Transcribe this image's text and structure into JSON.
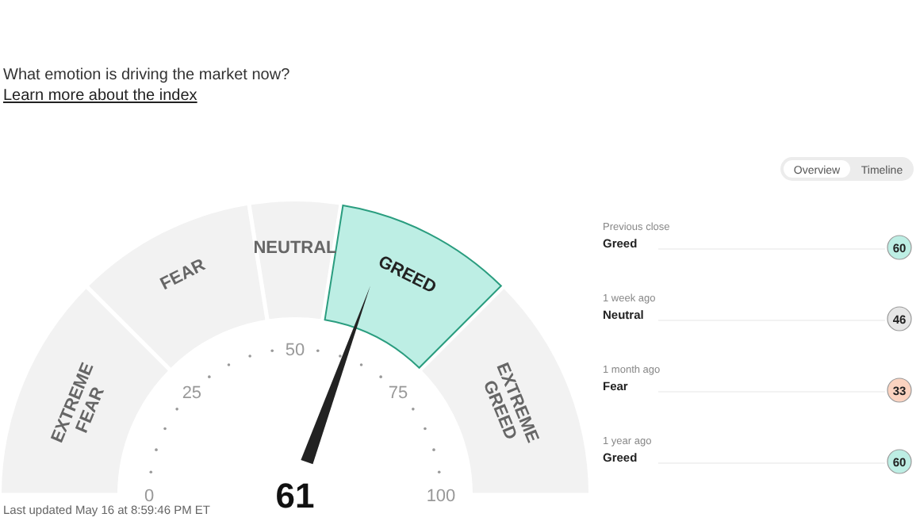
{
  "chart_data": [
    {
      "type": "donut",
      "subtitle": "What emotion is driving the market now?",
      "categories": [
        "EXTREME FEAR",
        "FEAR",
        "NEUTRAL",
        "GREED",
        "EXTREME GREED"
      ],
      "values": [
        25,
        20,
        10,
        20,
        25
      ],
      "colors": [
        "#f2f2f2",
        "#f2f2f2",
        "#f2f2f2",
        "#bdeee4",
        "#f2f2f2"
      ],
      "needle": "GREED",
      "annotations": [
        "61",
        "0",
        "25",
        "50",
        "75",
        "100",
        "Learn more about the index",
        "Last updated May 16 at 8:59:46 PM ET"
      ]
    },
    {
      "type": "other",
      "categories": [
        "Previous close",
        "1 week ago",
        "1 month ago",
        "1 year ago"
      ],
      "values": [
        60,
        46,
        33,
        60
      ],
      "data_labels": true,
      "colors": [
        "#bdeee4",
        "#e6e6e6",
        "#fbd3c0",
        "#bdeee4"
      ],
      "annotations": [
        "Overview",
        "Timeline",
        "Greed",
        "Neutral",
        "Fear",
        "Greed"
      ]
    }
  ]
}
